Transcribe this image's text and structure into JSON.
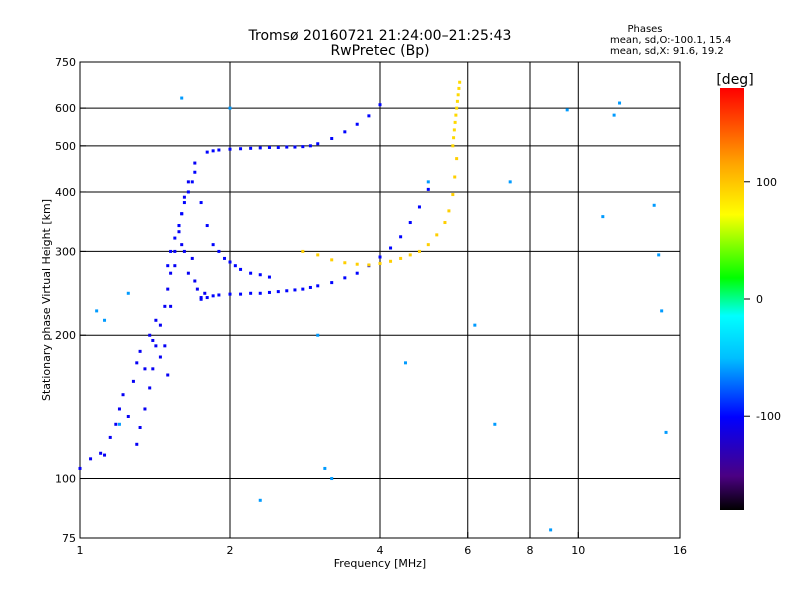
{
  "chart_data": {
    "type": "scatter",
    "title": "Tromsø 20160721 21:24:00–21:25:43",
    "subtitle": "RwPretec (Bp)",
    "xlabel": "Frequency [MHz]",
    "ylabel": "Stationary phase Virtual Height [km]",
    "x_scale": "log",
    "y_scale": "log",
    "xlim": [
      1,
      16
    ],
    "ylim": [
      75,
      750
    ],
    "x_ticks": [
      {
        "value": 1,
        "label": "1"
      },
      {
        "value": 2,
        "label": "2"
      },
      {
        "value": 4,
        "label": "4"
      },
      {
        "value": 6,
        "label": "6"
      },
      {
        "value": 8,
        "label": "8"
      },
      {
        "value": 10,
        "label": "10"
      },
      {
        "value": 16,
        "label": "16"
      }
    ],
    "y_ticks": [
      {
        "value": 75,
        "label": "75"
      },
      {
        "value": 100,
        "label": "100"
      },
      {
        "value": 200,
        "label": "200"
      },
      {
        "value": 300,
        "label": "300"
      },
      {
        "value": 400,
        "label": "400"
      },
      {
        "value": 500,
        "label": "500"
      },
      {
        "value": 600,
        "label": "600"
      },
      {
        "value": 750,
        "label": "750"
      }
    ],
    "grid": true,
    "grid_x": [
      2,
      4,
      6,
      8,
      10
    ],
    "grid_y": [
      100,
      200,
      300,
      400,
      500,
      600
    ],
    "phase_stats": {
      "title": "Phases",
      "line_o": "mean, sd,O:-100.1, 15.4",
      "line_x": "mean, sd,X:  91.6, 19.2"
    },
    "colorbar": {
      "label": "[deg]",
      "range": [
        -180,
        180
      ],
      "ticks": [
        {
          "value": 100,
          "label": "100"
        },
        {
          "value": 0,
          "label": "0"
        },
        {
          "value": -100,
          "label": "-100"
        }
      ]
    },
    "series": [
      {
        "x": [
          1.0,
          1.05,
          1.1,
          1.12,
          1.15,
          1.18,
          1.2,
          1.22,
          1.25,
          1.28,
          1.3,
          1.32,
          1.35,
          1.38,
          1.4,
          1.42,
          1.45,
          1.48,
          1.5,
          1.52,
          1.55,
          1.58,
          1.6,
          1.62,
          1.65,
          1.68,
          1.7,
          1.72,
          1.75,
          1.78
        ],
        "y": [
          105,
          110,
          113,
          112,
          122,
          130,
          140,
          150,
          135,
          160,
          175,
          185,
          170,
          200,
          195,
          215,
          180,
          190,
          165,
          230,
          280,
          340,
          310,
          300,
          270,
          290,
          260,
          250,
          240,
          245
        ],
        "phase": -105
      },
      {
        "x": [
          1.3,
          1.32,
          1.35,
          1.38,
          1.4,
          1.42,
          1.45,
          1.48,
          1.5,
          1.52,
          1.55,
          1.58,
          1.6,
          1.62,
          1.65,
          1.7
        ],
        "y": [
          118,
          128,
          140,
          155,
          170,
          190,
          210,
          230,
          250,
          270,
          300,
          330,
          360,
          390,
          420,
          460
        ],
        "phase": -105
      },
      {
        "x": [
          1.5,
          1.52,
          1.55,
          1.58,
          1.6,
          1.62,
          1.65,
          1.68,
          1.7,
          1.75,
          1.8,
          1.85,
          1.9,
          1.95,
          2.0,
          2.05,
          2.1,
          2.2,
          2.3,
          2.4
        ],
        "y": [
          280,
          300,
          320,
          340,
          360,
          380,
          400,
          420,
          440,
          380,
          340,
          310,
          300,
          290,
          285,
          280,
          275,
          270,
          268,
          265
        ],
        "phase": -100
      },
      {
        "x": [
          1.75,
          1.8,
          1.85,
          1.9,
          2.0,
          2.1,
          2.2,
          2.3,
          2.4,
          2.5,
          2.6,
          2.7,
          2.8,
          2.9,
          3.0,
          3.2,
          3.4,
          3.6,
          3.8,
          4.0,
          4.2,
          4.4,
          4.6,
          4.8,
          5.0
        ],
        "y": [
          238,
          240,
          242,
          243,
          244,
          244,
          245,
          245,
          246,
          247,
          248,
          249,
          250,
          252,
          254,
          258,
          264,
          270,
          280,
          292,
          305,
          322,
          345,
          372,
          405
        ],
        "phase": -100
      },
      {
        "x": [
          1.8,
          1.85,
          1.9,
          2.0,
          2.1,
          2.2,
          2.3,
          2.4,
          2.5,
          2.6,
          2.7,
          2.8,
          2.9,
          3.0,
          3.2,
          3.4,
          3.6,
          3.8,
          4.0
        ],
        "y": [
          485,
          488,
          490,
          492,
          493,
          494,
          495,
          496,
          496,
          497,
          497,
          498,
          500,
          505,
          518,
          535,
          555,
          578,
          610
        ],
        "phase": -100
      },
      {
        "x": [
          2.8,
          3.0,
          3.2,
          3.4,
          3.6,
          3.8,
          4.0,
          4.2,
          4.4,
          4.6,
          4.8,
          5.0,
          5.2,
          5.4,
          5.5,
          5.6,
          5.65,
          5.7
        ],
        "y": [
          300,
          295,
          288,
          284,
          282,
          281,
          283,
          286,
          290,
          295,
          300,
          310,
          325,
          345,
          365,
          395,
          430,
          470
        ],
        "phase": 95
      },
      {
        "x": [
          5.6,
          5.62,
          5.64,
          5.66,
          5.68,
          5.7,
          5.72,
          5.74,
          5.76,
          5.78
        ],
        "y": [
          500,
          520,
          540,
          560,
          580,
          600,
          620,
          640,
          660,
          680
        ],
        "phase": 90
      },
      {
        "x": [
          1.08,
          1.12,
          1.2,
          1.25,
          1.6,
          2.0,
          2.3,
          3.0,
          3.1,
          3.2,
          4.5,
          5.0,
          6.2,
          6.8,
          7.3,
          8.8,
          9.5,
          11.2,
          11.8,
          12.1,
          14.2,
          14.5,
          14.7,
          15.0
        ],
        "y": [
          225,
          215,
          130,
          245,
          630,
          600,
          90,
          200,
          105,
          100,
          175,
          420,
          210,
          130,
          420,
          78,
          595,
          355,
          580,
          615,
          375,
          295,
          225,
          125
        ],
        "phase": -60
      }
    ]
  }
}
